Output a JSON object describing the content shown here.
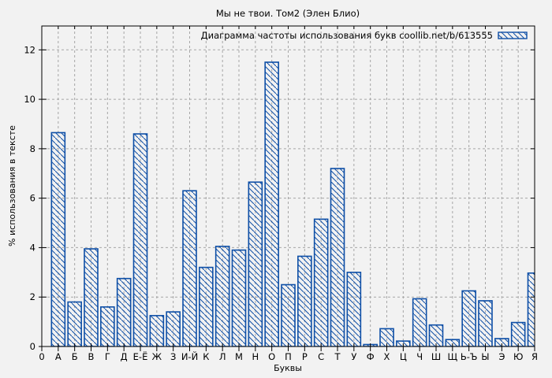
{
  "chart_data": {
    "type": "bar",
    "title": "Мы не твои. Том2 (Элен Блио)",
    "legend": "Диаграмма частоты использования букв coollib.net/b/613555",
    "legend_position": "top-right",
    "xlabel": "Буквы",
    "ylabel": "% использования в тексте",
    "categories": [
      "0",
      "А",
      "Б",
      "В",
      "Г",
      "Д",
      "Е-Ё",
      "Ж",
      "З",
      "И-Й",
      "К",
      "Л",
      "М",
      "Н",
      "О",
      "П",
      "Р",
      "С",
      "Т",
      "У",
      "Ф",
      "Х",
      "Ц",
      "Ч",
      "Ш",
      "Щ",
      "Ь-Ъ",
      "Ы",
      "Э",
      "Ю",
      "Я"
    ],
    "values": [
      0,
      8.65,
      1.8,
      3.95,
      1.6,
      2.75,
      8.6,
      1.25,
      1.4,
      6.3,
      3.2,
      4.05,
      3.9,
      6.65,
      11.5,
      2.5,
      3.65,
      5.15,
      7.2,
      3.0,
      0.08,
      0.72,
      0.22,
      1.93,
      0.87,
      0.28,
      2.25,
      1.85,
      0.32,
      0.97,
      2.97
    ],
    "ylim": [
      0,
      13
    ],
    "yticks": [
      0,
      2,
      4,
      6,
      8,
      10,
      12
    ],
    "grid": true,
    "hatch": "diagonal-backslash",
    "colors": {
      "bar_stroke": "#0d4ea6",
      "background": "#f2f2f2",
      "grid": "#a6a6a6",
      "border": "#000000",
      "text": "#000000"
    }
  }
}
